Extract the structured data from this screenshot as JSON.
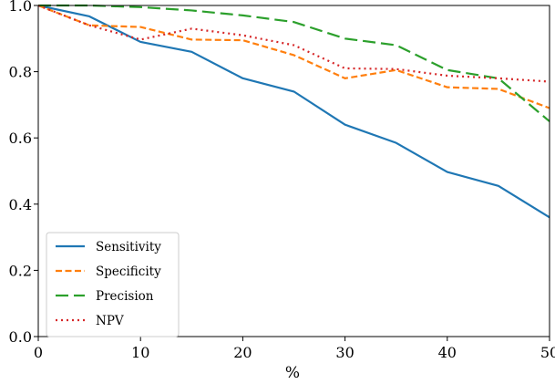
{
  "chart_data": {
    "type": "line",
    "xlabel": "%",
    "ylabel": "",
    "xlim": [
      0,
      50
    ],
    "ylim": [
      0,
      1.0
    ],
    "xticks": [
      "0",
      "10",
      "20",
      "30",
      "40",
      "50"
    ],
    "yticks": [
      "0.0",
      "0.2",
      "0.4",
      "0.6",
      "0.8",
      "1.0"
    ],
    "grid": false,
    "legend_position": "bottom-left",
    "x": [
      0,
      5,
      10,
      15,
      20,
      25,
      30,
      35,
      40,
      45,
      50
    ],
    "series": [
      {
        "name": "Sensitivity",
        "color": "#1f77b4",
        "dash": "solid",
        "values": [
          1.0,
          0.967,
          0.89,
          0.86,
          0.78,
          0.74,
          0.64,
          0.585,
          0.497,
          0.455,
          0.36
        ]
      },
      {
        "name": "Specificity",
        "color": "#ff7f0e",
        "dash": "short-dash",
        "values": [
          1.0,
          0.94,
          0.935,
          0.897,
          0.895,
          0.85,
          0.78,
          0.805,
          0.753,
          0.748,
          0.69
        ]
      },
      {
        "name": "Precision",
        "color": "#2ca02c",
        "dash": "long-dash",
        "values": [
          1.0,
          1.0,
          0.995,
          0.985,
          0.97,
          0.95,
          0.9,
          0.88,
          0.805,
          0.78,
          0.65
        ]
      },
      {
        "name": "NPV",
        "color": "#d62728",
        "dash": "dotted",
        "values": [
          1.0,
          0.94,
          0.897,
          0.93,
          0.91,
          0.88,
          0.81,
          0.808,
          0.788,
          0.78,
          0.77
        ]
      }
    ]
  }
}
